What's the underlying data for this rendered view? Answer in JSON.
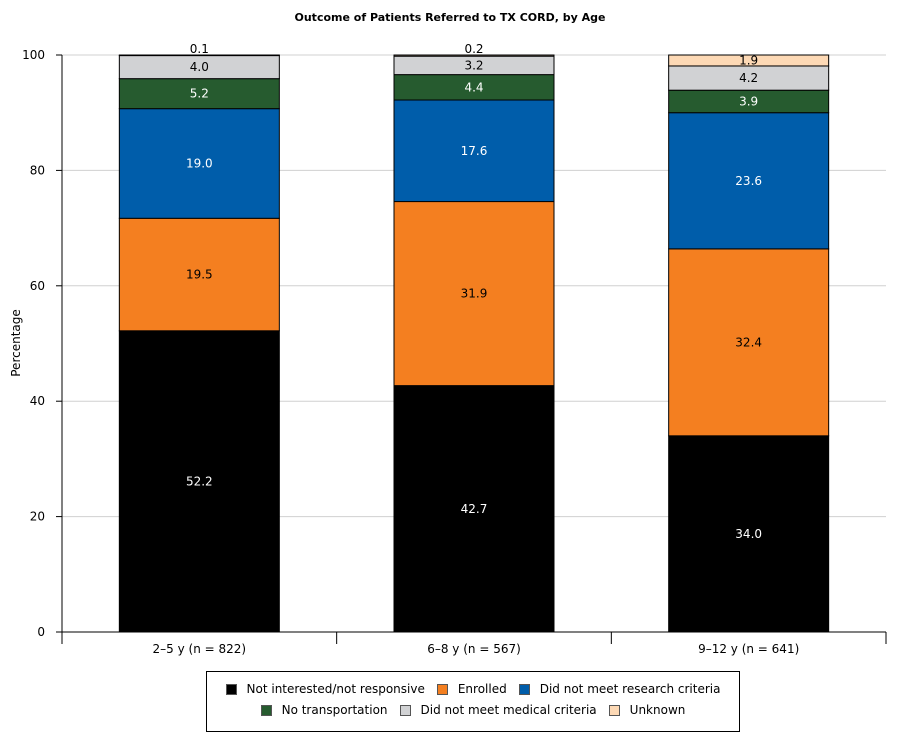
{
  "chart_data": {
    "type": "bar",
    "stacked": true,
    "title": "Outcome of Patients Referred to TX CORD, by Age",
    "xlabel": "",
    "ylabel": "Percentage",
    "ylim": [
      0,
      100
    ],
    "yticks": [
      0,
      20,
      40,
      60,
      80,
      100
    ],
    "grid": true,
    "legend_position": "bottom",
    "categories": [
      "2–5 y (n = 822)",
      "6–8 y (n = 567)",
      "9–12 y (n = 641)"
    ],
    "series": [
      {
        "name": "Not interested/not responsive",
        "color": "#000000",
        "values": [
          52.2,
          42.7,
          34.0
        ]
      },
      {
        "name": "Enrolled",
        "color": "#f47f20",
        "values": [
          19.5,
          31.9,
          32.4
        ]
      },
      {
        "name": "Did not meet research criteria",
        "color": "#005daa",
        "values": [
          19.0,
          17.6,
          23.6
        ]
      },
      {
        "name": "No transportation",
        "color": "#265b2f",
        "values": [
          5.2,
          4.4,
          3.9
        ]
      },
      {
        "name": "Did not meet medical criteria",
        "color": "#d1d2d4",
        "values": [
          4.0,
          3.2,
          4.2
        ]
      },
      {
        "name": "Unknown",
        "color": "#fdd9b5",
        "values": [
          0.1,
          0.2,
          1.9
        ]
      }
    ]
  }
}
